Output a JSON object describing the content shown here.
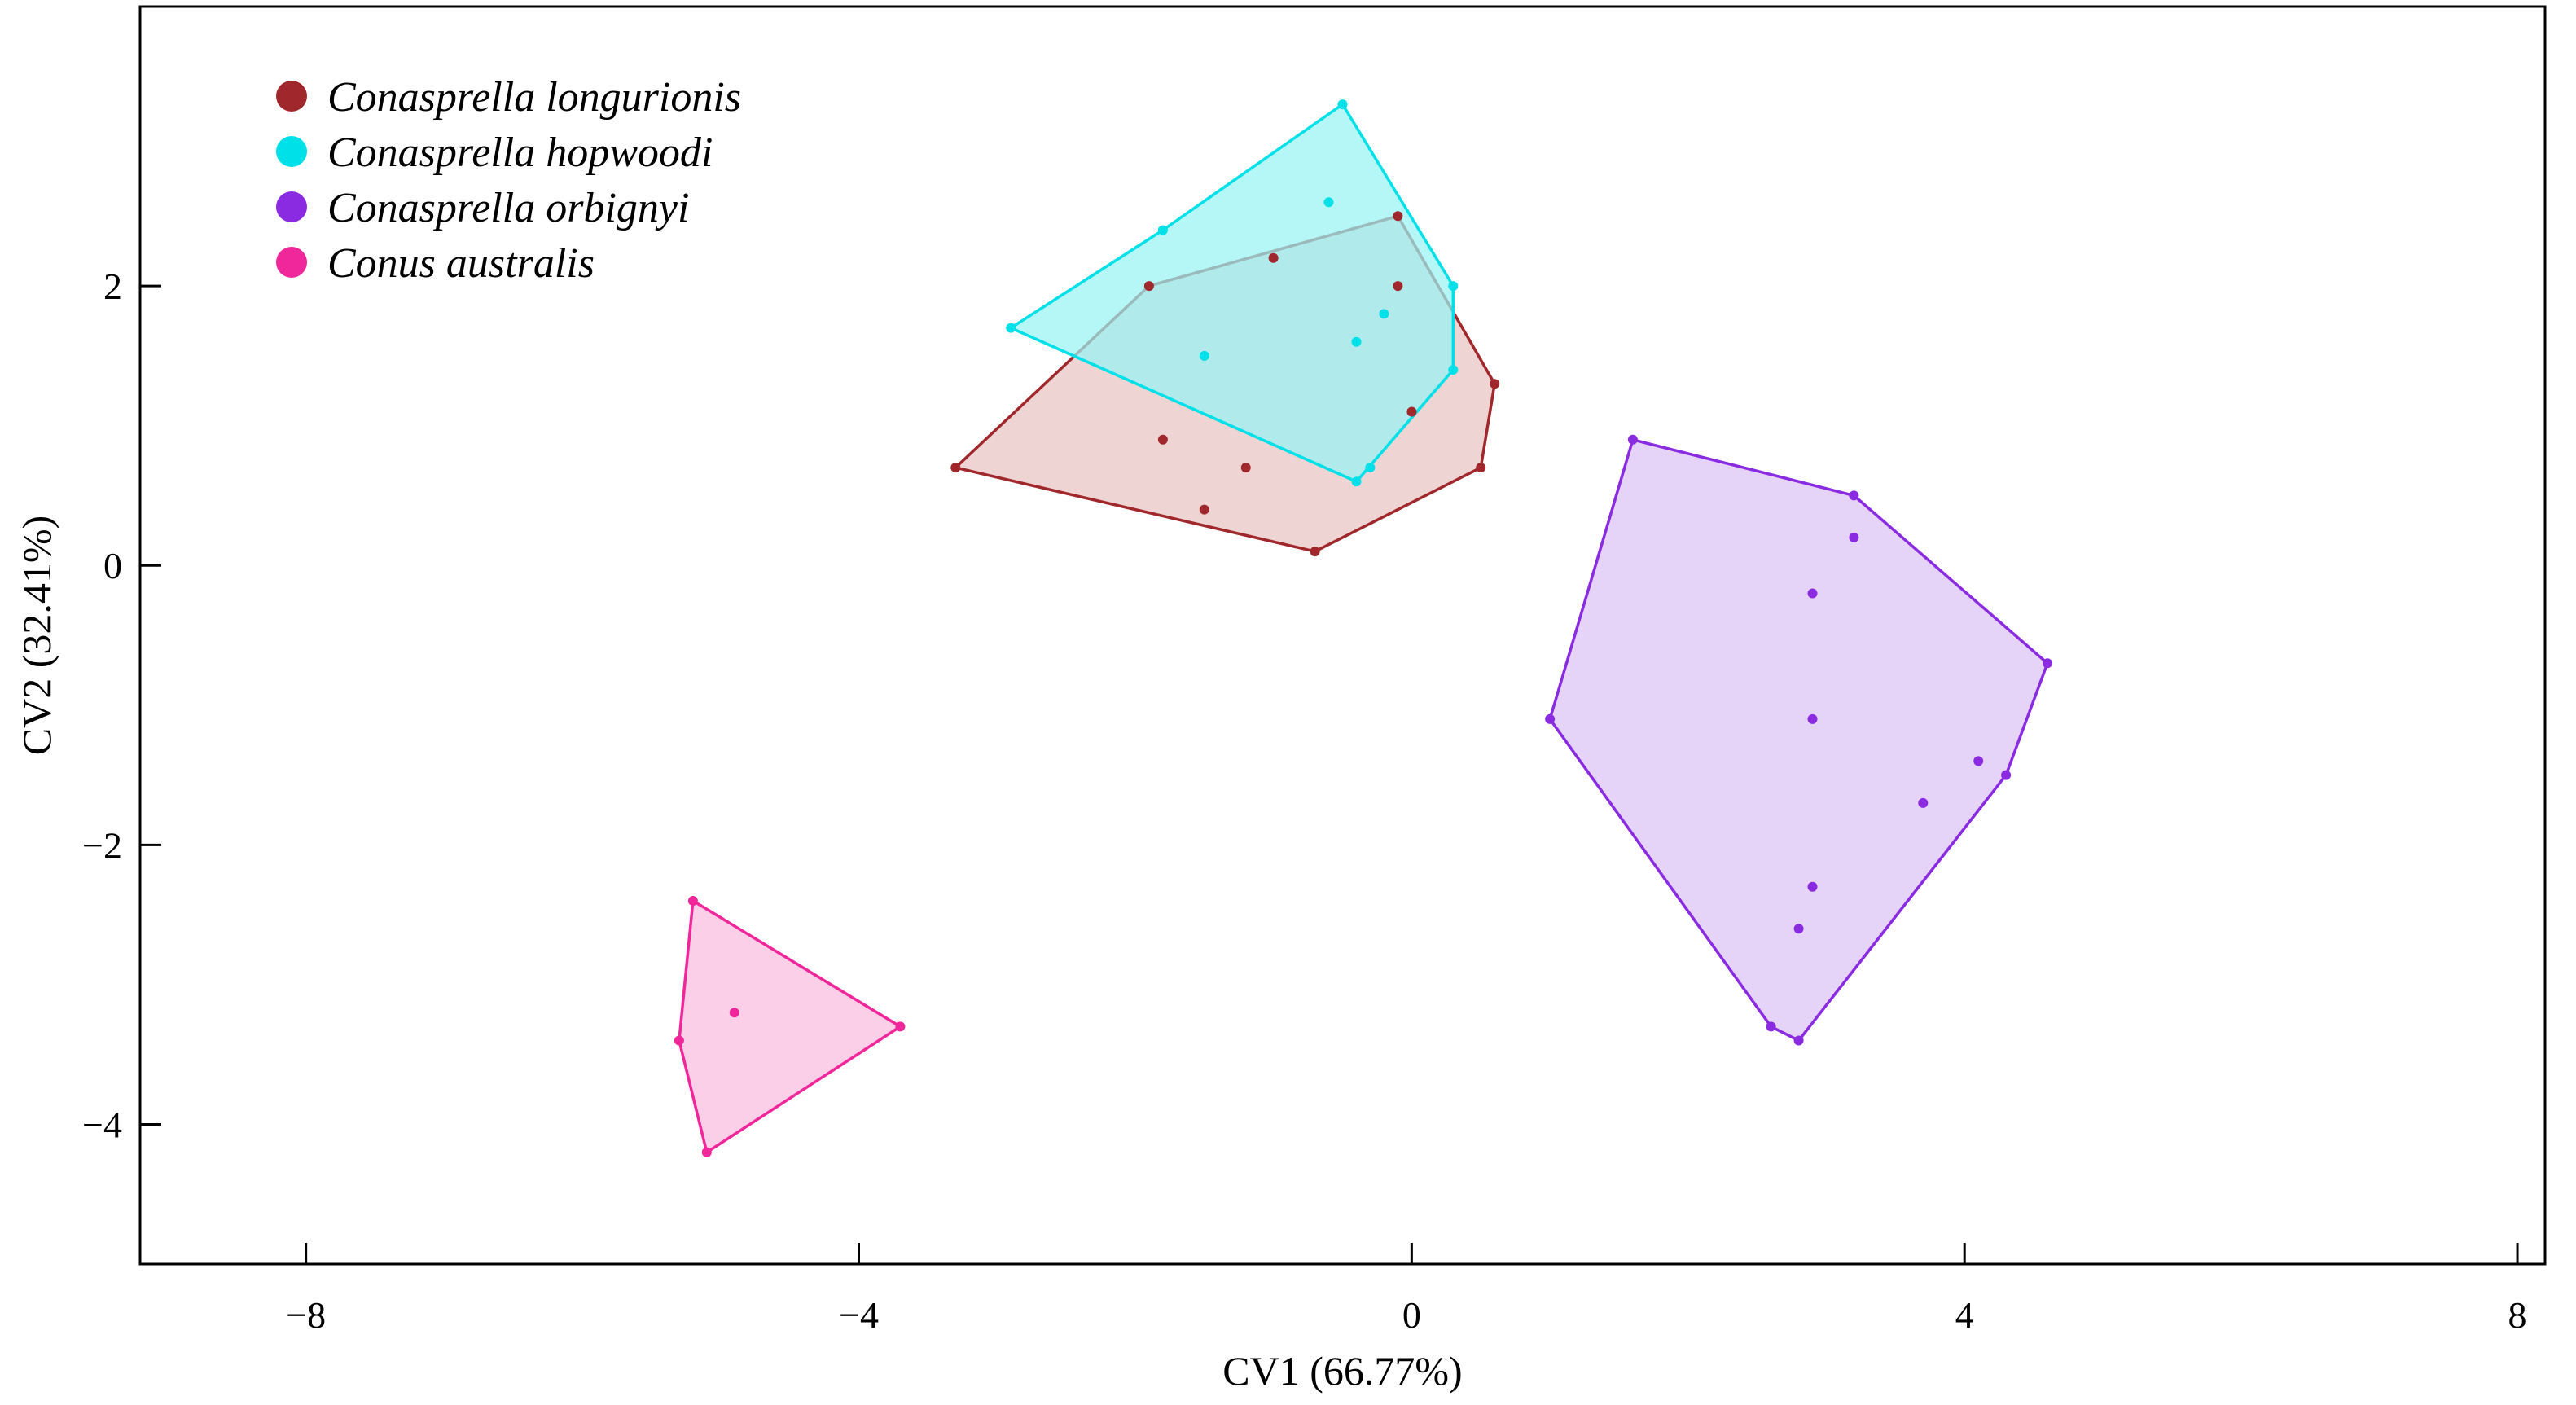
{
  "chart_data": {
    "type": "scatter",
    "xlabel": "CV1 (66.77%)",
    "ylabel": "CV2 (32.41%)",
    "xlim": [
      -9.2,
      8.2
    ],
    "ylim": [
      -5.0,
      4.0
    ],
    "xticks": [
      -8,
      -4,
      0,
      4,
      8
    ],
    "xtick_labels": [
      "−8",
      "−4",
      "0",
      "4",
      "8"
    ],
    "yticks": [
      2,
      0,
      -2,
      -4
    ],
    "ytick_labels": [
      "2",
      "0",
      "−2",
      "−4"
    ],
    "grid": false,
    "legend_position": "top-left",
    "series": [
      {
        "name": "Conasprella longurionis",
        "color": "#a0282c",
        "fill": "#e8c3c1",
        "hull": [
          [
            -0.1,
            2.5
          ],
          [
            0.6,
            1.3
          ],
          [
            0.5,
            0.7
          ],
          [
            -0.7,
            0.1
          ],
          [
            -3.3,
            0.7
          ],
          [
            -1.9,
            2.0
          ]
        ],
        "points": [
          [
            -0.1,
            2.5
          ],
          [
            0.6,
            1.3
          ],
          [
            0.5,
            0.7
          ],
          [
            -0.7,
            0.1
          ],
          [
            -3.3,
            0.7
          ],
          [
            -1.9,
            2.0
          ],
          [
            -1.0,
            2.2
          ],
          [
            -0.1,
            2.0
          ],
          [
            0.0,
            1.1
          ],
          [
            -1.8,
            0.9
          ],
          [
            -1.2,
            0.7
          ],
          [
            -1.5,
            0.4
          ]
        ]
      },
      {
        "name": "Conasprella hopwoodi",
        "color": "#00e0e8",
        "fill": "#99f2f2",
        "hull": [
          [
            -0.5,
            3.3
          ],
          [
            0.3,
            2.0
          ],
          [
            0.3,
            1.4
          ],
          [
            -0.4,
            0.6
          ],
          [
            -2.9,
            1.7
          ],
          [
            -1.8,
            2.4
          ]
        ],
        "points": [
          [
            -0.5,
            3.3
          ],
          [
            0.3,
            2.0
          ],
          [
            0.3,
            1.4
          ],
          [
            -0.4,
            0.6
          ],
          [
            -2.9,
            1.7
          ],
          [
            -1.8,
            2.4
          ],
          [
            -0.6,
            2.6
          ],
          [
            -0.2,
            1.8
          ],
          [
            -0.4,
            1.6
          ],
          [
            -1.5,
            1.5
          ],
          [
            -0.3,
            0.7
          ]
        ]
      },
      {
        "name": "Conasprella orbignyi",
        "color": "#8a2be2",
        "fill": "#dcc4f5",
        "hull": [
          [
            1.6,
            0.9
          ],
          [
            3.2,
            0.5
          ],
          [
            4.6,
            -0.7
          ],
          [
            4.3,
            -1.5
          ],
          [
            2.8,
            -3.4
          ],
          [
            2.6,
            -3.3
          ],
          [
            1.0,
            -1.1
          ]
        ],
        "points": [
          [
            1.6,
            0.9
          ],
          [
            3.2,
            0.5
          ],
          [
            4.6,
            -0.7
          ],
          [
            4.3,
            -1.5
          ],
          [
            2.8,
            -3.4
          ],
          [
            2.6,
            -3.3
          ],
          [
            1.0,
            -1.1
          ],
          [
            3.2,
            0.2
          ],
          [
            2.9,
            -0.2
          ],
          [
            2.9,
            -1.1
          ],
          [
            4.1,
            -1.4
          ],
          [
            3.7,
            -1.7
          ],
          [
            2.9,
            -2.3
          ],
          [
            2.8,
            -2.6
          ]
        ]
      },
      {
        "name": "Conus australis",
        "color": "#f0279a",
        "fill": "#fbbde0",
        "hull": [
          [
            -5.2,
            -2.4
          ],
          [
            -3.7,
            -3.3
          ],
          [
            -5.1,
            -4.2
          ],
          [
            -5.3,
            -3.4
          ]
        ],
        "points": [
          [
            -5.2,
            -2.4
          ],
          [
            -3.7,
            -3.3
          ],
          [
            -5.1,
            -4.2
          ],
          [
            -5.3,
            -3.4
          ],
          [
            -4.9,
            -3.2
          ]
        ]
      }
    ]
  }
}
